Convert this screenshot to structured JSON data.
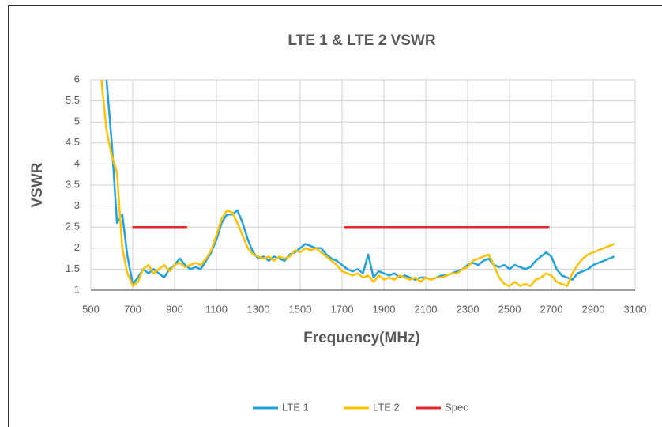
{
  "chart_data": {
    "type": "line",
    "title": "LTE 1 & LTE 2 VSWR",
    "x_label": "Frequency(MHz)",
    "y_label": "VSWR",
    "x": [
      550,
      575,
      600,
      625,
      650,
      675,
      700,
      725,
      750,
      775,
      800,
      825,
      850,
      875,
      900,
      925,
      950,
      975,
      1000,
      1025,
      1050,
      1075,
      1100,
      1125,
      1150,
      1175,
      1200,
      1225,
      1250,
      1275,
      1300,
      1325,
      1350,
      1375,
      1400,
      1425,
      1450,
      1475,
      1500,
      1525,
      1550,
      1575,
      1600,
      1625,
      1650,
      1675,
      1700,
      1725,
      1750,
      1775,
      1800,
      1825,
      1850,
      1875,
      1900,
      1925,
      1950,
      1975,
      2000,
      2025,
      2050,
      2075,
      2100,
      2125,
      2150,
      2175,
      2200,
      2225,
      2250,
      2275,
      2300,
      2325,
      2350,
      2375,
      2400,
      2425,
      2450,
      2475,
      2500,
      2525,
      2550,
      2575,
      2600,
      2625,
      2650,
      2675,
      2700,
      2725,
      2750,
      2775,
      2800,
      2825,
      2850,
      2875,
      2900,
      2925,
      2950,
      2975,
      3000
    ],
    "series": [
      {
        "name": "LTE 1",
        "color": "#1fa3dc",
        "values": [
          null,
          6.0,
          4.5,
          2.6,
          2.8,
          1.8,
          1.15,
          1.3,
          1.5,
          1.4,
          1.5,
          1.4,
          1.3,
          1.5,
          1.6,
          1.75,
          1.6,
          1.5,
          1.55,
          1.5,
          1.7,
          1.9,
          2.2,
          2.6,
          2.8,
          2.8,
          2.9,
          2.6,
          2.2,
          1.9,
          1.75,
          1.8,
          1.7,
          1.8,
          1.75,
          1.7,
          1.85,
          1.9,
          2.0,
          2.1,
          2.05,
          2.0,
          2.0,
          1.85,
          1.75,
          1.7,
          1.6,
          1.5,
          1.45,
          1.5,
          1.4,
          1.85,
          1.3,
          1.45,
          1.4,
          1.35,
          1.4,
          1.3,
          1.35,
          1.3,
          1.25,
          1.3,
          1.3,
          1.25,
          1.3,
          1.35,
          1.35,
          1.4,
          1.45,
          1.5,
          1.6,
          1.65,
          1.6,
          1.7,
          1.75,
          1.6,
          1.55,
          1.6,
          1.5,
          1.6,
          1.55,
          1.5,
          1.55,
          1.7,
          1.8,
          1.9,
          1.8,
          1.5,
          1.35,
          1.3,
          1.25,
          1.4,
          1.45,
          1.5,
          1.6,
          1.65,
          1.7,
          1.75,
          1.8
        ]
      },
      {
        "name": "LTE 2",
        "color": "#ffc000",
        "values": [
          6.0,
          4.8,
          4.2,
          3.8,
          2.0,
          1.4,
          1.1,
          1.2,
          1.5,
          1.6,
          1.4,
          1.5,
          1.6,
          1.45,
          1.6,
          1.65,
          1.55,
          1.6,
          1.65,
          1.6,
          1.75,
          1.95,
          2.3,
          2.7,
          2.9,
          2.85,
          2.6,
          2.3,
          2.0,
          1.85,
          1.8,
          1.75,
          1.8,
          1.7,
          1.8,
          1.75,
          1.8,
          1.95,
          1.9,
          2.0,
          1.95,
          2.0,
          1.9,
          1.8,
          1.7,
          1.6,
          1.45,
          1.4,
          1.35,
          1.4,
          1.3,
          1.35,
          1.2,
          1.35,
          1.25,
          1.3,
          1.25,
          1.35,
          1.3,
          1.25,
          1.3,
          1.2,
          1.3,
          1.25,
          1.3,
          1.3,
          1.35,
          1.4,
          1.4,
          1.5,
          1.55,
          1.7,
          1.75,
          1.8,
          1.85,
          1.6,
          1.3,
          1.15,
          1.1,
          1.2,
          1.1,
          1.15,
          1.1,
          1.25,
          1.3,
          1.4,
          1.35,
          1.2,
          1.15,
          1.1,
          1.4,
          1.6,
          1.75,
          1.85,
          1.9,
          1.95,
          2.0,
          2.05,
          2.1
        ]
      },
      {
        "name": "Spec",
        "color": "#e8262a",
        "x": [
          698,
          960,
          null,
          1710,
          2690
        ],
        "values": [
          2.5,
          2.5,
          null,
          2.5,
          2.5
        ]
      }
    ],
    "xlim": [
      500,
      3100
    ],
    "xticks": [
      500,
      700,
      900,
      1100,
      1300,
      1500,
      1700,
      1900,
      2100,
      2300,
      2500,
      2700,
      2900,
      3100
    ],
    "ylim": [
      1,
      6
    ],
    "yticks": [
      1,
      1.5,
      2,
      2.5,
      3,
      3.5,
      4,
      4.5,
      5,
      5.5,
      6
    ],
    "grid": true,
    "legend": "bottom"
  }
}
